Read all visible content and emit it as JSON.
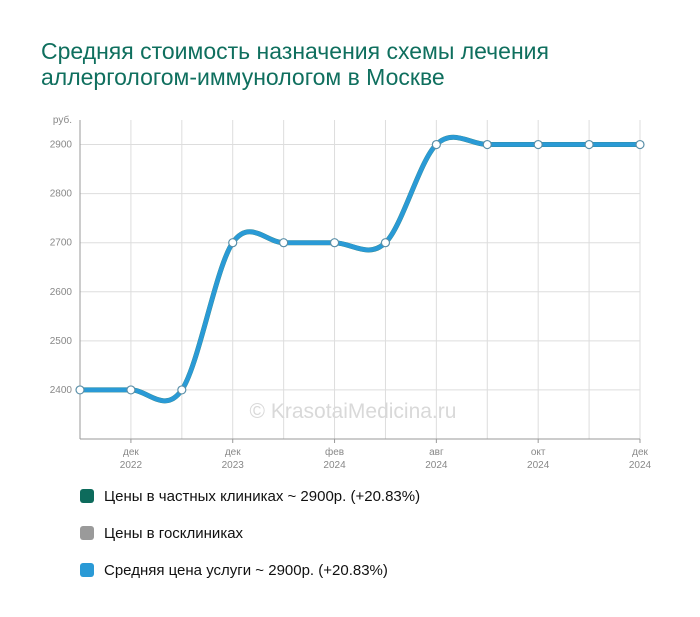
{
  "header": {
    "title_line1": "Средняя стоимость назначения схемы лечения",
    "title_line2": "аллергологом-иммунологом в Москве"
  },
  "watermark": "© KrasotaiMedicina.ru",
  "colors": {
    "title": "#0f6f5e",
    "private": "#0d6b5c",
    "public": "#9a9a9a",
    "average": "#2a9ad6",
    "grid": "#dddddd",
    "tick_text": "#888888"
  },
  "legend": [
    {
      "label": "Цены в частных клиниках ~ 2900р. (+20.83%)",
      "color": "#0d6b5c"
    },
    {
      "label": "Цены в госклиниках",
      "color": "#9a9a9a"
    },
    {
      "label": "Средняя цена услуги ~ 2900р. (+20.83%)",
      "color": "#2a9ad6"
    }
  ],
  "chart_data": {
    "type": "line",
    "y_unit_label": "руб.",
    "ylim": [
      2300,
      2950
    ],
    "yticks": [
      2400,
      2500,
      2600,
      2700,
      2800,
      2900
    ],
    "x_tick_labels": [
      {
        "month": "дек",
        "year": "2022"
      },
      {
        "month": "дек",
        "year": "2023"
      },
      {
        "month": "фев",
        "year": "2024"
      },
      {
        "month": "авг",
        "year": "2024"
      },
      {
        "month": "окт",
        "year": "2024"
      },
      {
        "month": "дек",
        "year": "2024"
      }
    ],
    "grid": true,
    "legend_position": "bottom",
    "series": [
      {
        "name": "Средняя цена услуги ~ 2900р. (+20.83%)",
        "values": [
          2400,
          2400,
          2400,
          2700,
          2700,
          2700,
          2700,
          2900,
          2900,
          2900,
          2900,
          2900
        ]
      }
    ]
  }
}
